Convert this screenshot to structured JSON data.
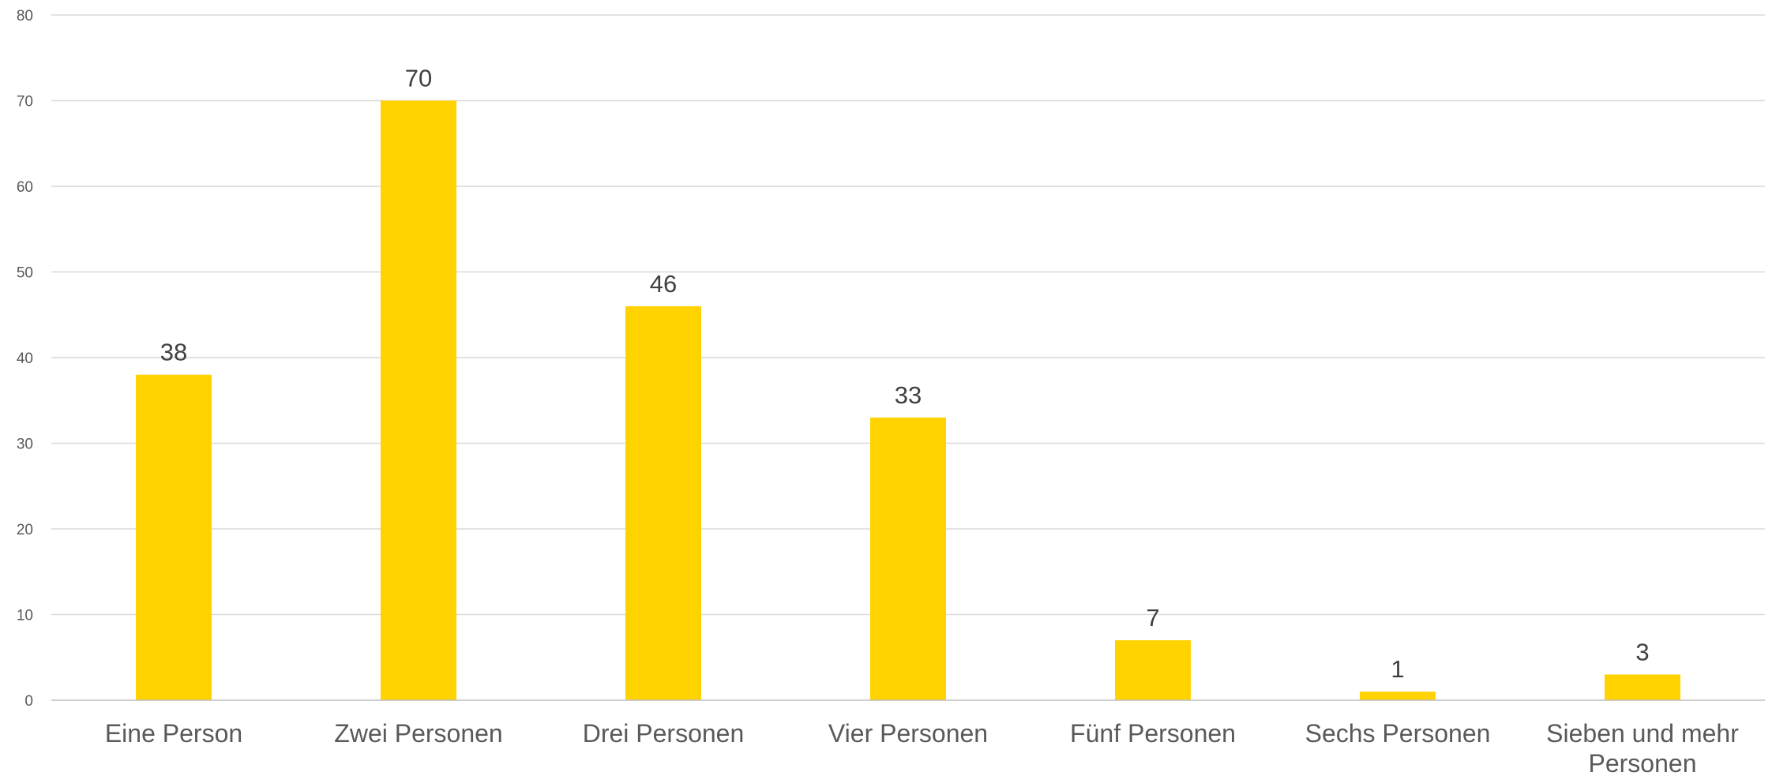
{
  "chart_data": {
    "type": "bar",
    "categories": [
      "Eine Person",
      "Zwei Personen",
      "Drei Personen",
      "Vier Personen",
      "Fünf Personen",
      "Sechs Personen",
      [
        "Sieben und mehr",
        "Personen"
      ]
    ],
    "values": [
      38,
      70,
      46,
      33,
      7,
      1,
      3
    ],
    "title": "",
    "xlabel": "",
    "ylabel": "",
    "ylim": [
      0,
      80
    ],
    "yticks": [
      0,
      10,
      20,
      30,
      40,
      50,
      60,
      70,
      80
    ],
    "grid": true,
    "legend": "none",
    "data_labels": true,
    "bar_color": "#FFD200"
  }
}
